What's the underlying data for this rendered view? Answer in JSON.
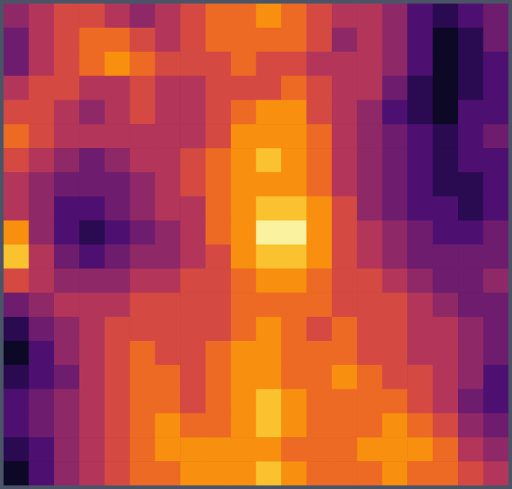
{
  "chart_data": {
    "type": "heatmap",
    "tick_labels": false,
    "zlim": [
      0,
      10
    ],
    "z": [
      [
        4,
        5,
        6,
        6,
        5,
        4,
        5,
        6,
        7,
        7,
        8,
        7,
        6,
        5,
        5,
        4,
        2,
        1,
        2,
        3
      ],
      [
        3,
        5,
        6,
        7,
        7,
        6,
        5,
        6,
        7,
        7,
        7,
        7,
        6,
        4,
        5,
        4,
        2,
        0,
        1,
        3
      ],
      [
        3,
        5,
        6,
        7,
        8,
        7,
        6,
        6,
        6,
        7,
        6,
        6,
        5,
        5,
        5,
        4,
        2,
        0,
        1,
        2
      ],
      [
        5,
        6,
        6,
        5,
        5,
        6,
        5,
        5,
        6,
        6,
        6,
        7,
        6,
        5,
        5,
        3,
        1,
        0,
        1,
        2
      ],
      [
        6,
        6,
        5,
        4,
        5,
        6,
        5,
        5,
        6,
        7,
        8,
        8,
        6,
        5,
        4,
        2,
        1,
        0,
        2,
        2
      ],
      [
        7,
        6,
        5,
        5,
        5,
        5,
        5,
        5,
        6,
        8,
        8,
        8,
        7,
        5,
        4,
        3,
        2,
        1,
        2,
        3
      ],
      [
        6,
        5,
        4,
        3,
        4,
        5,
        5,
        6,
        7,
        8,
        9,
        8,
        7,
        5,
        4,
        3,
        2,
        1,
        2,
        2
      ],
      [
        5,
        4,
        3,
        3,
        3,
        4,
        5,
        6,
        7,
        8,
        8,
        8,
        7,
        5,
        4,
        3,
        2,
        1,
        1,
        2
      ],
      [
        5,
        4,
        2,
        2,
        3,
        4,
        5,
        5,
        7,
        8,
        9,
        9,
        8,
        6,
        4,
        3,
        2,
        2,
        1,
        2
      ],
      [
        8,
        4,
        2,
        1,
        2,
        3,
        4,
        5,
        7,
        8,
        10,
        10,
        8,
        6,
        5,
        4,
        3,
        2,
        2,
        3
      ],
      [
        9,
        5,
        3,
        2,
        3,
        4,
        4,
        5,
        6,
        8,
        9,
        9,
        8,
        6,
        5,
        4,
        3,
        3,
        3,
        3
      ],
      [
        6,
        5,
        4,
        4,
        4,
        5,
        5,
        6,
        6,
        7,
        8,
        8,
        7,
        6,
        6,
        5,
        4,
        3,
        3,
        4
      ],
      [
        3,
        4,
        5,
        5,
        5,
        6,
        6,
        6,
        6,
        7,
        7,
        7,
        7,
        6,
        6,
        6,
        5,
        4,
        3,
        3
      ],
      [
        1,
        3,
        4,
        5,
        6,
        6,
        6,
        6,
        6,
        7,
        8,
        7,
        6,
        7,
        6,
        6,
        5,
        5,
        4,
        3
      ],
      [
        0,
        2,
        4,
        5,
        6,
        7,
        6,
        6,
        7,
        8,
        8,
        7,
        7,
        7,
        6,
        6,
        5,
        5,
        4,
        3
      ],
      [
        1,
        2,
        3,
        5,
        6,
        7,
        7,
        6,
        7,
        8,
        8,
        7,
        7,
        8,
        7,
        6,
        6,
        5,
        4,
        2
      ],
      [
        2,
        3,
        4,
        5,
        6,
        7,
        7,
        6,
        7,
        8,
        9,
        8,
        7,
        7,
        7,
        7,
        6,
        5,
        3,
        2
      ],
      [
        2,
        3,
        4,
        5,
        6,
        7,
        8,
        7,
        7,
        8,
        9,
        8,
        7,
        7,
        7,
        8,
        7,
        6,
        4,
        3
      ],
      [
        1,
        2,
        4,
        5,
        6,
        7,
        8,
        8,
        8,
        8,
        8,
        7,
        7,
        7,
        8,
        8,
        8,
        7,
        5,
        4
      ],
      [
        0,
        2,
        4,
        5,
        6,
        7,
        7,
        8,
        8,
        8,
        9,
        8,
        7,
        7,
        7,
        8,
        7,
        7,
        6,
        5
      ]
    ]
  }
}
